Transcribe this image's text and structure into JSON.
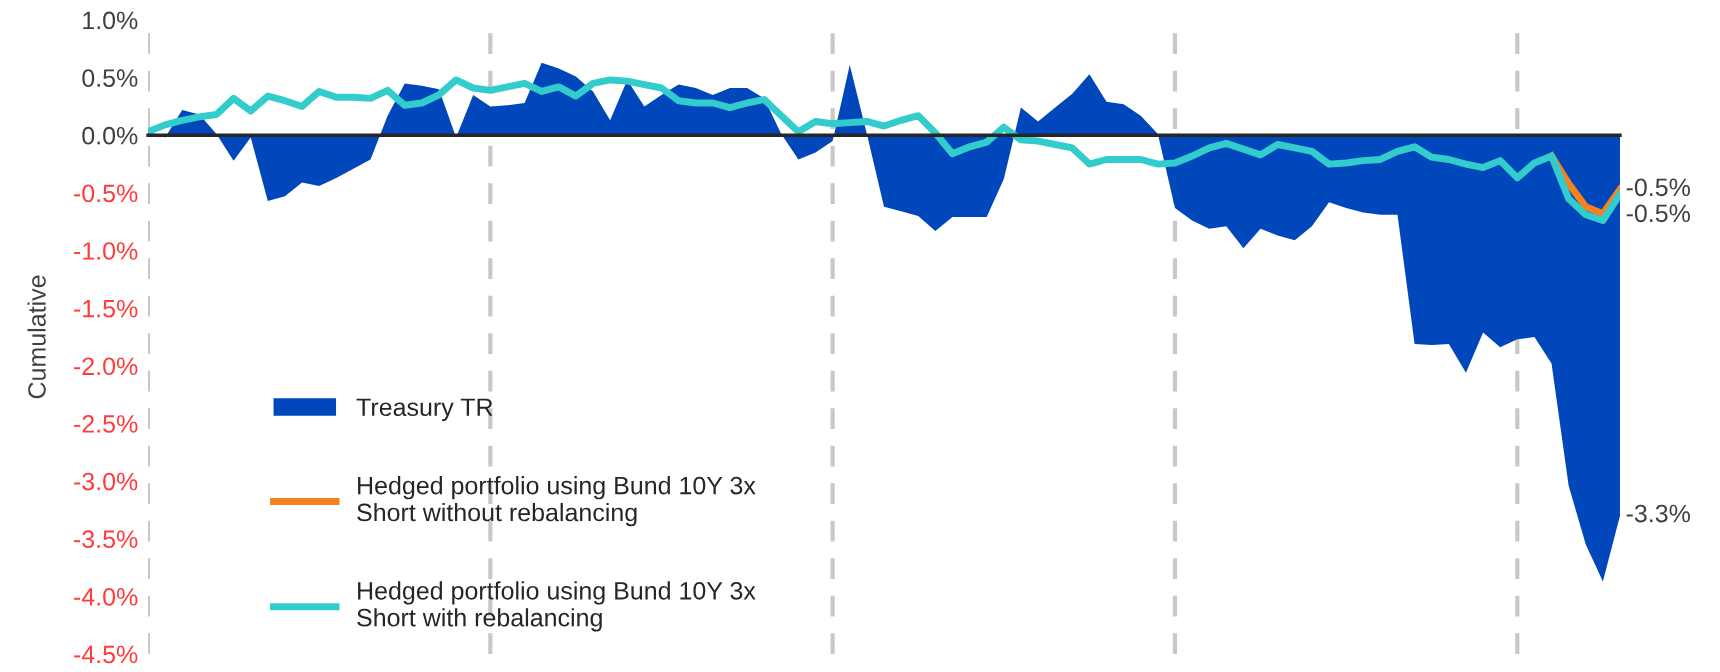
{
  "chart_data": {
    "type": "line",
    "ylabel": "Cumulative",
    "ylim": [
      -4.5,
      1.0
    ],
    "yticks": [
      {
        "value": -4.5,
        "label": "-4.5%"
      },
      {
        "value": -4.0,
        "label": "-4.0%"
      },
      {
        "value": -3.5,
        "label": "-3.5%"
      },
      {
        "value": -3.0,
        "label": "-3.0%"
      },
      {
        "value": -2.5,
        "label": "-2.5%"
      },
      {
        "value": -2.0,
        "label": "-2.0%"
      },
      {
        "value": -1.5,
        "label": "-1.5%"
      },
      {
        "value": -1.0,
        "label": "-1.0%"
      },
      {
        "value": -0.5,
        "label": "-0.5%"
      },
      {
        "value": 0.0,
        "label": "0.0%"
      },
      {
        "value": 0.5,
        "label": "0.5%"
      },
      {
        "value": 1.0,
        "label": "1.0%"
      }
    ],
    "categories": [
      null,
      null,
      null,
      null,
      null,
      null,
      null,
      null,
      null,
      null,
      null,
      null,
      null,
      null,
      null,
      null,
      null,
      null,
      null,
      null,
      null,
      null,
      null,
      null,
      null,
      null,
      null,
      null,
      null,
      null,
      null,
      null,
      null,
      null,
      null,
      null,
      null,
      null,
      null,
      null,
      null,
      null,
      null,
      null,
      null,
      null,
      null,
      null,
      null,
      null,
      null,
      null,
      null,
      null,
      null,
      null,
      null,
      null,
      null,
      null,
      null,
      null,
      null,
      null,
      null,
      null,
      null,
      null,
      null,
      null,
      null,
      null,
      null,
      null,
      null,
      null,
      null,
      null,
      null,
      null,
      null,
      null,
      null,
      null,
      null,
      null,
      null
    ],
    "tick_labels": "y",
    "grid": "x",
    "legend": "bottom left",
    "series": [
      {
        "name": "Treasury TR",
        "type": "area",
        "color": "#0047bb",
        "values": [
          0.03,
          -0.02,
          0.22,
          0.18,
          0.01,
          -0.22,
          -0.02,
          -0.57,
          -0.53,
          -0.41,
          -0.44,
          -0.37,
          -0.29,
          -0.21,
          0.17,
          0.45,
          0.43,
          0.4,
          -0.02,
          0.35,
          0.25,
          0.26,
          0.28,
          0.63,
          0.58,
          0.51,
          0.38,
          0.13,
          0.48,
          0.25,
          0.35,
          0.44,
          0.41,
          0.35,
          0.41,
          0.41,
          0.32,
          0.01,
          -0.21,
          -0.15,
          -0.05,
          0.61,
          0.01,
          -0.62,
          -0.66,
          -0.7,
          -0.83,
          -0.71,
          -0.71,
          -0.71,
          -0.38,
          0.24,
          0.12,
          0.24,
          0.36,
          0.53,
          0.29,
          0.27,
          0.17,
          0.01,
          -0.63,
          -0.74,
          -0.81,
          -0.79,
          -0.98,
          -0.81,
          -0.87,
          -0.91,
          -0.79,
          -0.58,
          -0.63,
          -0.67,
          -0.69,
          -0.69,
          -1.81,
          -1.82,
          -1.81,
          -2.06,
          -1.71,
          -1.84,
          -1.77,
          -1.75,
          -1.98,
          -3.04,
          -3.55,
          -3.87,
          -3.3
        ],
        "value_labels": [
          null,
          null,
          null,
          null,
          null,
          null,
          null,
          null,
          null,
          null,
          null,
          null,
          null,
          null,
          null,
          null,
          null,
          null,
          null,
          null,
          null,
          null,
          null,
          null,
          null,
          null,
          null,
          null,
          null,
          null,
          null,
          null,
          null,
          null,
          null,
          null,
          null,
          null,
          null,
          null,
          null,
          null,
          null,
          null,
          null,
          null,
          null,
          null,
          null,
          null,
          null,
          null,
          null,
          null,
          null,
          null,
          null,
          null,
          null,
          null,
          null,
          null,
          null,
          null,
          null,
          null,
          null,
          null,
          null,
          null,
          null,
          null,
          null,
          null,
          null,
          null,
          null,
          null,
          null,
          null,
          null,
          null,
          null,
          null,
          null,
          null,
          "-3.3%"
        ]
      },
      {
        "name": "Hedged portfolio using Bund 10Y 3x\nShort without rebalancing",
        "color": "#f58220",
        "values": [
          null,
          null,
          null,
          null,
          null,
          null,
          null,
          null,
          null,
          null,
          null,
          null,
          null,
          null,
          null,
          null,
          null,
          null,
          null,
          null,
          null,
          null,
          null,
          null,
          null,
          null,
          null,
          null,
          null,
          null,
          null,
          null,
          null,
          null,
          null,
          null,
          null,
          null,
          null,
          null,
          null,
          null,
          null,
          null,
          null,
          null,
          null,
          null,
          null,
          null,
          null,
          null,
          null,
          null,
          null,
          null,
          null,
          null,
          null,
          null,
          null,
          null,
          null,
          null,
          null,
          null,
          null,
          null,
          null,
          null,
          null,
          null,
          null,
          null,
          null,
          null,
          null,
          null,
          null,
          null,
          null,
          null,
          -0.18,
          -0.42,
          -0.62,
          -0.68,
          -0.47
        ],
        "value_labels": [
          null,
          null,
          null,
          null,
          null,
          null,
          null,
          null,
          null,
          null,
          null,
          null,
          null,
          null,
          null,
          null,
          null,
          null,
          null,
          null,
          null,
          null,
          null,
          null,
          null,
          null,
          null,
          null,
          null,
          null,
          null,
          null,
          null,
          null,
          null,
          null,
          null,
          null,
          null,
          null,
          null,
          null,
          null,
          null,
          null,
          null,
          null,
          null,
          null,
          null,
          null,
          null,
          null,
          null,
          null,
          null,
          null,
          null,
          null,
          null,
          null,
          null,
          null,
          null,
          null,
          null,
          null,
          null,
          null,
          null,
          null,
          null,
          null,
          null,
          null,
          null,
          null,
          null,
          null,
          null,
          null,
          null,
          null,
          null,
          null,
          null,
          "-0.5%"
        ]
      },
      {
        "name": "Hedged portfolio using Bund 10Y 3x\nShort with rebalancing",
        "color": "#33cccc",
        "values": [
          0.03,
          0.09,
          0.13,
          0.16,
          0.18,
          0.32,
          0.21,
          0.34,
          0.3,
          0.25,
          0.38,
          0.33,
          0.33,
          0.32,
          0.39,
          0.26,
          0.28,
          0.35,
          0.48,
          0.41,
          0.39,
          0.42,
          0.45,
          0.38,
          0.42,
          0.34,
          0.45,
          0.48,
          0.47,
          0.44,
          0.41,
          0.3,
          0.28,
          0.28,
          0.24,
          0.28,
          0.31,
          0.17,
          0.03,
          0.12,
          0.1,
          0.11,
          0.12,
          0.08,
          0.13,
          0.17,
          0.02,
          -0.16,
          -0.1,
          -0.06,
          0.07,
          -0.04,
          -0.05,
          -0.08,
          -0.11,
          -0.25,
          -0.21,
          -0.21,
          -0.21,
          -0.25,
          -0.24,
          -0.18,
          -0.11,
          -0.07,
          -0.12,
          -0.17,
          -0.08,
          -0.11,
          -0.14,
          -0.25,
          -0.24,
          -0.22,
          -0.21,
          -0.14,
          -0.1,
          -0.19,
          -0.21,
          -0.25,
          -0.28,
          -0.22,
          -0.37,
          -0.24,
          -0.18,
          -0.55,
          -0.69,
          -0.74,
          -0.51
        ],
        "value_labels": [
          null,
          null,
          null,
          null,
          null,
          null,
          null,
          null,
          null,
          null,
          null,
          null,
          null,
          null,
          null,
          null,
          null,
          null,
          null,
          null,
          null,
          null,
          null,
          null,
          null,
          null,
          null,
          null,
          null,
          null,
          null,
          null,
          null,
          null,
          null,
          null,
          null,
          null,
          null,
          null,
          null,
          null,
          null,
          null,
          null,
          null,
          null,
          null,
          null,
          null,
          null,
          null,
          null,
          null,
          null,
          null,
          null,
          null,
          null,
          null,
          null,
          null,
          null,
          null,
          null,
          null,
          null,
          null,
          null,
          null,
          null,
          null,
          null,
          null,
          null,
          null,
          null,
          null,
          null,
          null,
          null,
          null,
          null,
          null,
          null,
          null,
          "-0.5%"
        ]
      }
    ]
  }
}
